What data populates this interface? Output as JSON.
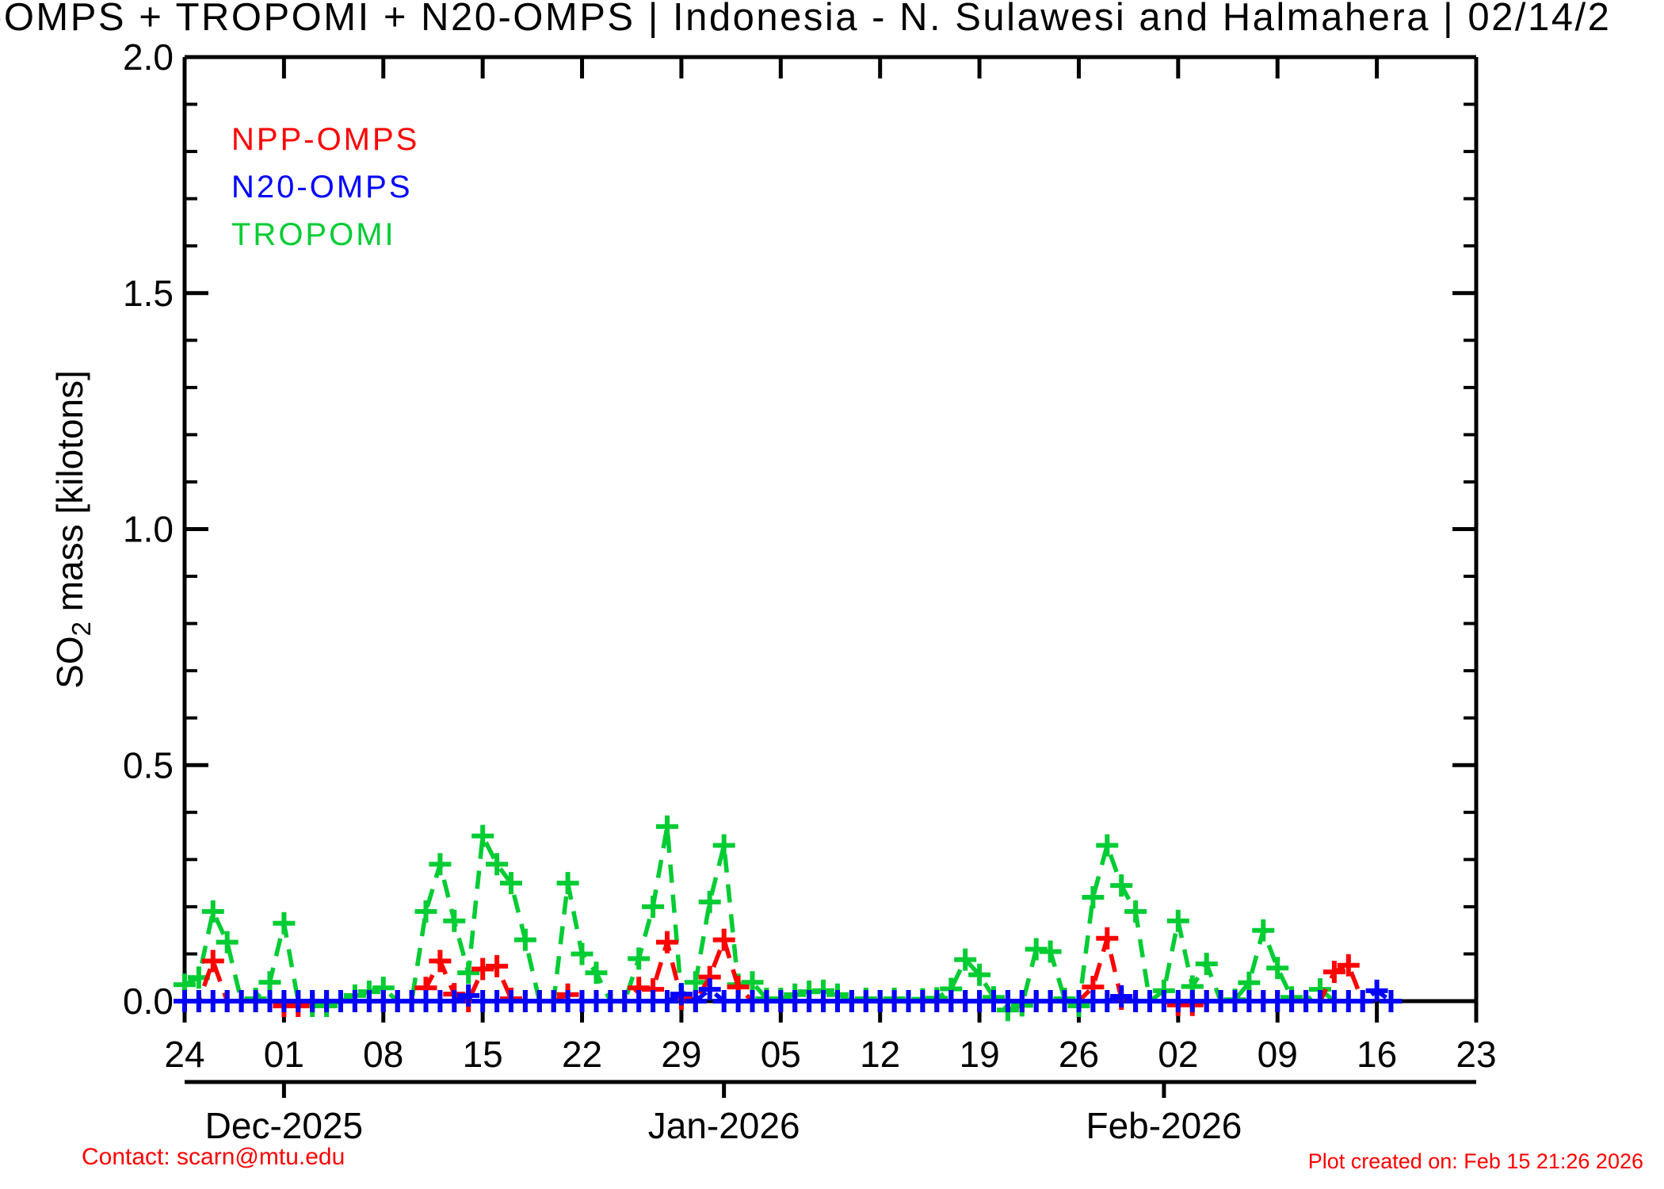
{
  "title": "-OMPS + TROPOMI + N20-OMPS | Indonesia - N. Sulawesi and Halmahera | 02/14/2",
  "legend": {
    "items": [
      {
        "label": "NPP-OMPS",
        "color": "#ff0000"
      },
      {
        "label": "N20-OMPS",
        "color": "#0000ff"
      },
      {
        "label": "TROPOMI",
        "color": "#00cc33"
      }
    ]
  },
  "footer": {
    "contact": "Contact: scarn@mtu.edu",
    "created": "Plot created on: Feb 15 21:26 2026",
    "accent_color": "#ff0000"
  },
  "chart_data": {
    "type": "line",
    "title": "",
    "xlabel": "",
    "ylabel_main": "SO",
    "ylabel_sub": "2",
    "ylabel_rest": " mass [kilotons]",
    "ylim": [
      0.0,
      2.0
    ],
    "y_minor_step": 0.1,
    "y_major_ticks": [
      {
        "v": 0.0,
        "label": "0.0"
      },
      {
        "v": 0.5,
        "label": "0.5"
      },
      {
        "v": 1.0,
        "label": "1.0"
      },
      {
        "v": 1.5,
        "label": "1.5"
      },
      {
        "v": 2.0,
        "label": "2.0"
      }
    ],
    "x_start_label": "Nov 24 2025",
    "x_total_days": 91,
    "x_week_tick_labels": [
      "24",
      "01",
      "08",
      "15",
      "22",
      "29",
      "05",
      "12",
      "19",
      "26",
      "02",
      "09",
      "16",
      "23"
    ],
    "months": [
      {
        "label": "Dec-2025",
        "day": 7
      },
      {
        "label": "Jan-2026",
        "day": 38
      },
      {
        "label": "Feb-2026",
        "day": 69
      }
    ],
    "grid": false,
    "legend_position": "top-left-inside",
    "series": [
      {
        "name": "TROPOMI",
        "color": "#00cc33",
        "start_day": 0,
        "values": [
          0.035,
          0.05,
          0.19,
          0.125,
          0,
          0.005,
          0.04,
          0.165,
          0,
          -0.01,
          -0.01,
          0,
          0.012,
          0.02,
          0.028,
          0,
          0,
          0.19,
          0.29,
          0.17,
          0.06,
          0.35,
          0.29,
          0.25,
          0.13,
          0,
          0,
          0.25,
          0.1,
          0.06,
          0,
          0,
          0.09,
          0.2,
          0.37,
          0.01,
          0.04,
          0.21,
          0.33,
          0.035,
          0.04,
          0.005,
          0.005,
          0.014,
          0.02,
          0.022,
          0.014,
          0,
          0.005,
          0,
          0.005,
          0,
          0.004,
          0.006,
          0.026,
          0.088,
          0.056,
          0.008,
          -0.019,
          -0.009,
          0.11,
          0.105,
          0.005,
          -0.01,
          0.22,
          0.33,
          0.245,
          0.19,
          0,
          0.022,
          0.17,
          0.031,
          0.079,
          0,
          0.003,
          0.039,
          0.15,
          0.07,
          0.008,
          0,
          0.025,
          0
        ]
      },
      {
        "name": "NPP-OMPS",
        "color": "#ff0000",
        "start_day": 0,
        "values": [
          0,
          0,
          0.085,
          0,
          0,
          0,
          0,
          -0.01,
          -0.01,
          0,
          0,
          0,
          0,
          0,
          0,
          0,
          0,
          0.028,
          0.085,
          0.015,
          0,
          0.068,
          0.074,
          0.005,
          0,
          0,
          0,
          0.014,
          0,
          0,
          0,
          0,
          0.028,
          0.025,
          0.125,
          0.005,
          0,
          0.051,
          0.13,
          0.03,
          0,
          0,
          0,
          0,
          0,
          0,
          0,
          0,
          0,
          0,
          0,
          0,
          0,
          0,
          0,
          0,
          0,
          0,
          0,
          0,
          0,
          0,
          0,
          0,
          0.03,
          0.133,
          0.005,
          0,
          0,
          0,
          -0.008,
          -0.008,
          0,
          0,
          0,
          0,
          0,
          0,
          0,
          0,
          0,
          0.062,
          0.076,
          0
        ]
      },
      {
        "name": "N20-OMPS",
        "color": "#0000ff",
        "start_day": 0,
        "values": [
          0,
          0,
          0,
          0,
          0,
          0,
          0,
          0,
          0,
          0,
          0,
          0,
          0,
          0,
          0,
          0,
          0,
          0,
          0,
          0,
          0.012,
          0,
          0,
          0,
          0,
          0,
          0,
          0,
          0,
          0,
          0,
          0,
          0,
          0,
          0,
          0.015,
          0,
          0.025,
          0,
          0,
          0,
          0,
          0,
          0,
          0,
          0,
          0,
          0,
          0,
          0,
          0,
          0,
          0,
          0,
          0,
          0,
          0,
          0,
          0,
          0,
          0,
          0,
          0,
          0,
          0,
          0,
          0.01,
          0,
          0,
          0,
          0,
          0,
          0,
          0,
          0,
          0,
          0,
          0,
          0,
          0,
          0,
          0,
          0,
          0,
          0.022,
          0
        ]
      }
    ]
  }
}
